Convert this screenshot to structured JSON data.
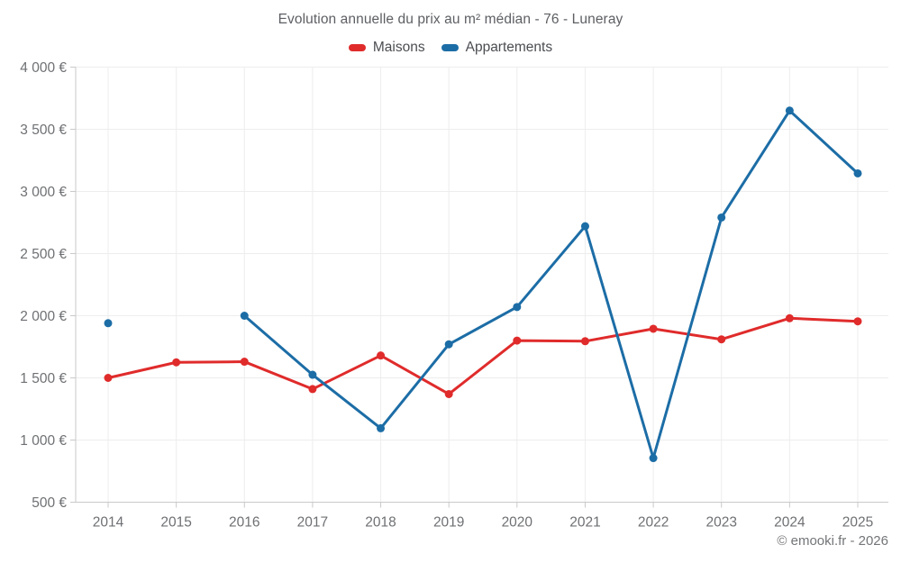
{
  "chart_data": {
    "type": "line",
    "title": "Evolution annuelle du prix au m² médian - 76 - Luneray",
    "categories": [
      "2014",
      "2015",
      "2016",
      "2017",
      "2018",
      "2019",
      "2020",
      "2021",
      "2022",
      "2023",
      "2024",
      "2025"
    ],
    "series": [
      {
        "name": "Maisons",
        "color": "#e02b2b",
        "values": [
          1500,
          1625,
          1630,
          1410,
          1680,
          1370,
          1800,
          1795,
          1895,
          1810,
          1980,
          1955
        ]
      },
      {
        "name": "Appartements",
        "color": "#1c6da6",
        "values": [
          1940,
          null,
          2000,
          1525,
          1095,
          1770,
          2070,
          2720,
          855,
          2790,
          3650,
          3145
        ]
      }
    ],
    "xlabel": "",
    "ylabel": "",
    "ylim": [
      500,
      4000
    ],
    "y_tick_step": 500,
    "y_tick_labels": [
      "500 €",
      "1 000 €",
      "1 500 €",
      "2 000 €",
      "2 500 €",
      "3 000 €",
      "3 500 €",
      "4 000 €"
    ],
    "grid": true,
    "legend_position": "top",
    "colors": {
      "grid_line": "#ededed",
      "axis_line": "#c9c9c9",
      "tick_label": "#6e7073",
      "background": "#ffffff"
    }
  },
  "footer": {
    "credit": "© emooki.fr - 2026"
  }
}
